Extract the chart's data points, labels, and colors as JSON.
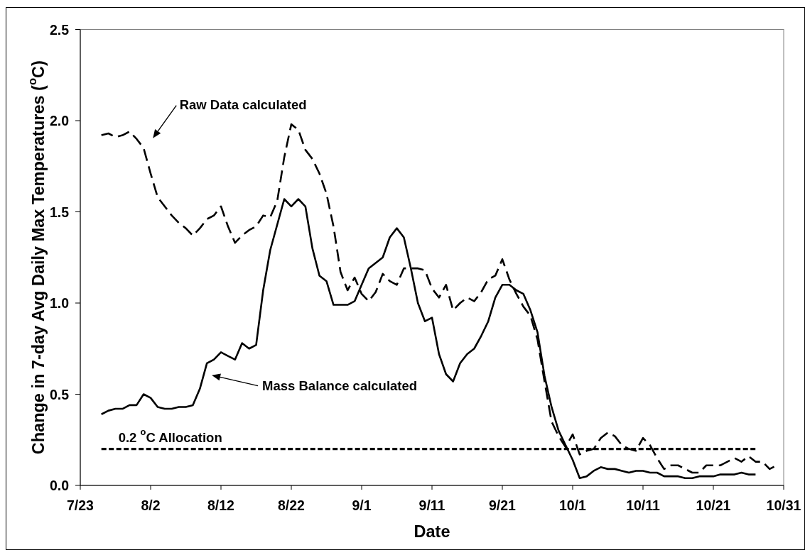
{
  "chart_data": {
    "type": "line",
    "xlabel": "Date",
    "ylabel": "Change in 7-day Avg Daily Max Temperatures ($^{o}$C)",
    "x": [
      "--07-26",
      "--07-27",
      "--07-28",
      "--07-29",
      "--07-30",
      "--07-31",
      "--08-01",
      "--08-02",
      "--08-03",
      "--08-04",
      "--08-05",
      "--08-06",
      "--08-07",
      "--08-08",
      "--08-09",
      "--08-10",
      "--08-11",
      "--08-12",
      "--08-13",
      "--08-14",
      "--08-15",
      "--08-16",
      "--08-17",
      "--08-18",
      "--08-19",
      "--08-20",
      "--08-21",
      "--08-22",
      "--08-23",
      "--08-24",
      "--08-25",
      "--08-26",
      "--08-27",
      "--08-28",
      "--08-29",
      "--08-30",
      "--08-31",
      "--09-01",
      "--09-02",
      "--09-03",
      "--09-04",
      "--09-05",
      "--09-06",
      "--09-07",
      "--09-08",
      "--09-09",
      "--09-10",
      "--09-11",
      "--09-12",
      "--09-13",
      "--09-14",
      "--09-15",
      "--09-16",
      "--09-17",
      "--09-18",
      "--09-19",
      "--09-20",
      "--09-21",
      "--09-22",
      "--09-23",
      "--09-24",
      "--09-25",
      "--09-26",
      "--09-27",
      "--09-28",
      "--09-29",
      "--09-30",
      "--10-01",
      "--10-02",
      "--10-03",
      "--10-04",
      "--10-05",
      "--10-06",
      "--10-07",
      "--10-08",
      "--10-09",
      "--10-10",
      "--10-11",
      "--10-12",
      "--10-13",
      "--10-14",
      "--10-15",
      "--10-16",
      "--10-17",
      "--10-18",
      "--10-19",
      "--10-20",
      "--10-21",
      "--10-22",
      "--10-23",
      "--10-24",
      "--10-25",
      "--10-26",
      "--10-27",
      "--10-28",
      "--10-29",
      "--10-30"
    ],
    "series": [
      {
        "name": "Raw Data calculated",
        "color": "#000000",
        "line_style": "dashed",
        "values": [
          1.92,
          1.93,
          1.91,
          1.92,
          1.94,
          1.9,
          1.85,
          1.71,
          1.58,
          1.53,
          1.48,
          1.44,
          1.41,
          1.37,
          1.41,
          1.46,
          1.48,
          1.53,
          1.42,
          1.33,
          1.37,
          1.4,
          1.42,
          1.48,
          1.47,
          1.56,
          1.8,
          1.98,
          1.95,
          1.84,
          1.79,
          1.71,
          1.6,
          1.42,
          1.17,
          1.07,
          1.14,
          1.05,
          1.01,
          1.06,
          1.16,
          1.12,
          1.1,
          1.19,
          1.19,
          1.19,
          1.18,
          1.08,
          1.03,
          1.1,
          0.96,
          1.0,
          1.03,
          1.01,
          1.06,
          1.13,
          1.15,
          1.24,
          1.13,
          1.05,
          0.98,
          0.93,
          0.8,
          0.57,
          0.35,
          0.27,
          0.21,
          0.28,
          0.17,
          0.19,
          0.2,
          0.26,
          0.29,
          0.27,
          0.22,
          0.2,
          0.19,
          0.26,
          0.22,
          0.15,
          0.09,
          0.11,
          0.11,
          0.09,
          0.07,
          0.07,
          0.11,
          0.11,
          0.11,
          0.13,
          0.15,
          0.13,
          0.16,
          0.13,
          0.13,
          0.09,
          0.11
        ]
      },
      {
        "name": "Mass Balance calculated",
        "color": "#000000",
        "line_style": "solid",
        "values": [
          0.39,
          0.41,
          0.42,
          0.42,
          0.44,
          0.44,
          0.5,
          0.48,
          0.43,
          0.42,
          0.42,
          0.43,
          0.43,
          0.44,
          0.53,
          0.67,
          0.69,
          0.73,
          0.71,
          0.69,
          0.78,
          0.75,
          0.77,
          1.07,
          1.29,
          1.43,
          1.57,
          1.53,
          1.57,
          1.53,
          1.3,
          1.15,
          1.12,
          0.99,
          0.99,
          0.99,
          1.01,
          1.1,
          1.19,
          1.22,
          1.25,
          1.36,
          1.41,
          1.36,
          1.19,
          1.0,
          0.9,
          0.92,
          0.72,
          0.61,
          0.57,
          0.67,
          0.72,
          0.75,
          0.82,
          0.9,
          1.03,
          1.1,
          1.1,
          1.07,
          1.05,
          0.96,
          0.84,
          0.6,
          0.43,
          0.3,
          0.22,
          0.14,
          0.04,
          0.05,
          0.08,
          0.1,
          0.09,
          0.09,
          0.08,
          0.07,
          0.08,
          0.08,
          0.07,
          0.07,
          0.05,
          0.05,
          0.05,
          0.04,
          0.04,
          0.05,
          0.05,
          0.05,
          0.06,
          0.06,
          0.06,
          0.07,
          0.06,
          0.06,
          null,
          null,
          null
        ]
      }
    ],
    "ref_lines": [
      {
        "axis": "y",
        "value": 0.2,
        "label": "0.2 $^{o}$C Allocation",
        "color": "#000000",
        "line_style": "dotted"
      }
    ],
    "xlim": [
      "--07-23",
      "--10-31"
    ],
    "xticks": [
      {
        "value": "--07-23",
        "label": "7/23"
      },
      {
        "value": "--08-02",
        "label": "8/2"
      },
      {
        "value": "--08-12",
        "label": "8/12"
      },
      {
        "value": "--08-22",
        "label": "8/22"
      },
      {
        "value": "--09-01",
        "label": "9/1"
      },
      {
        "value": "--09-11",
        "label": "9/11"
      },
      {
        "value": "--09-21",
        "label": "9/21"
      },
      {
        "value": "--10-01",
        "label": "10/1"
      },
      {
        "value": "--10-11",
        "label": "10/11"
      },
      {
        "value": "--10-21",
        "label": "10/21"
      },
      {
        "value": "--10-31",
        "label": "10/31"
      }
    ],
    "ylim": [
      0,
      2.5
    ],
    "yticks": [
      {
        "value": 0,
        "label": "0.0"
      },
      0.5,
      {
        "value": 1,
        "label": "1.0"
      },
      1.5,
      {
        "value": 2,
        "label": "2.0"
      },
      2.5
    ]
  }
}
